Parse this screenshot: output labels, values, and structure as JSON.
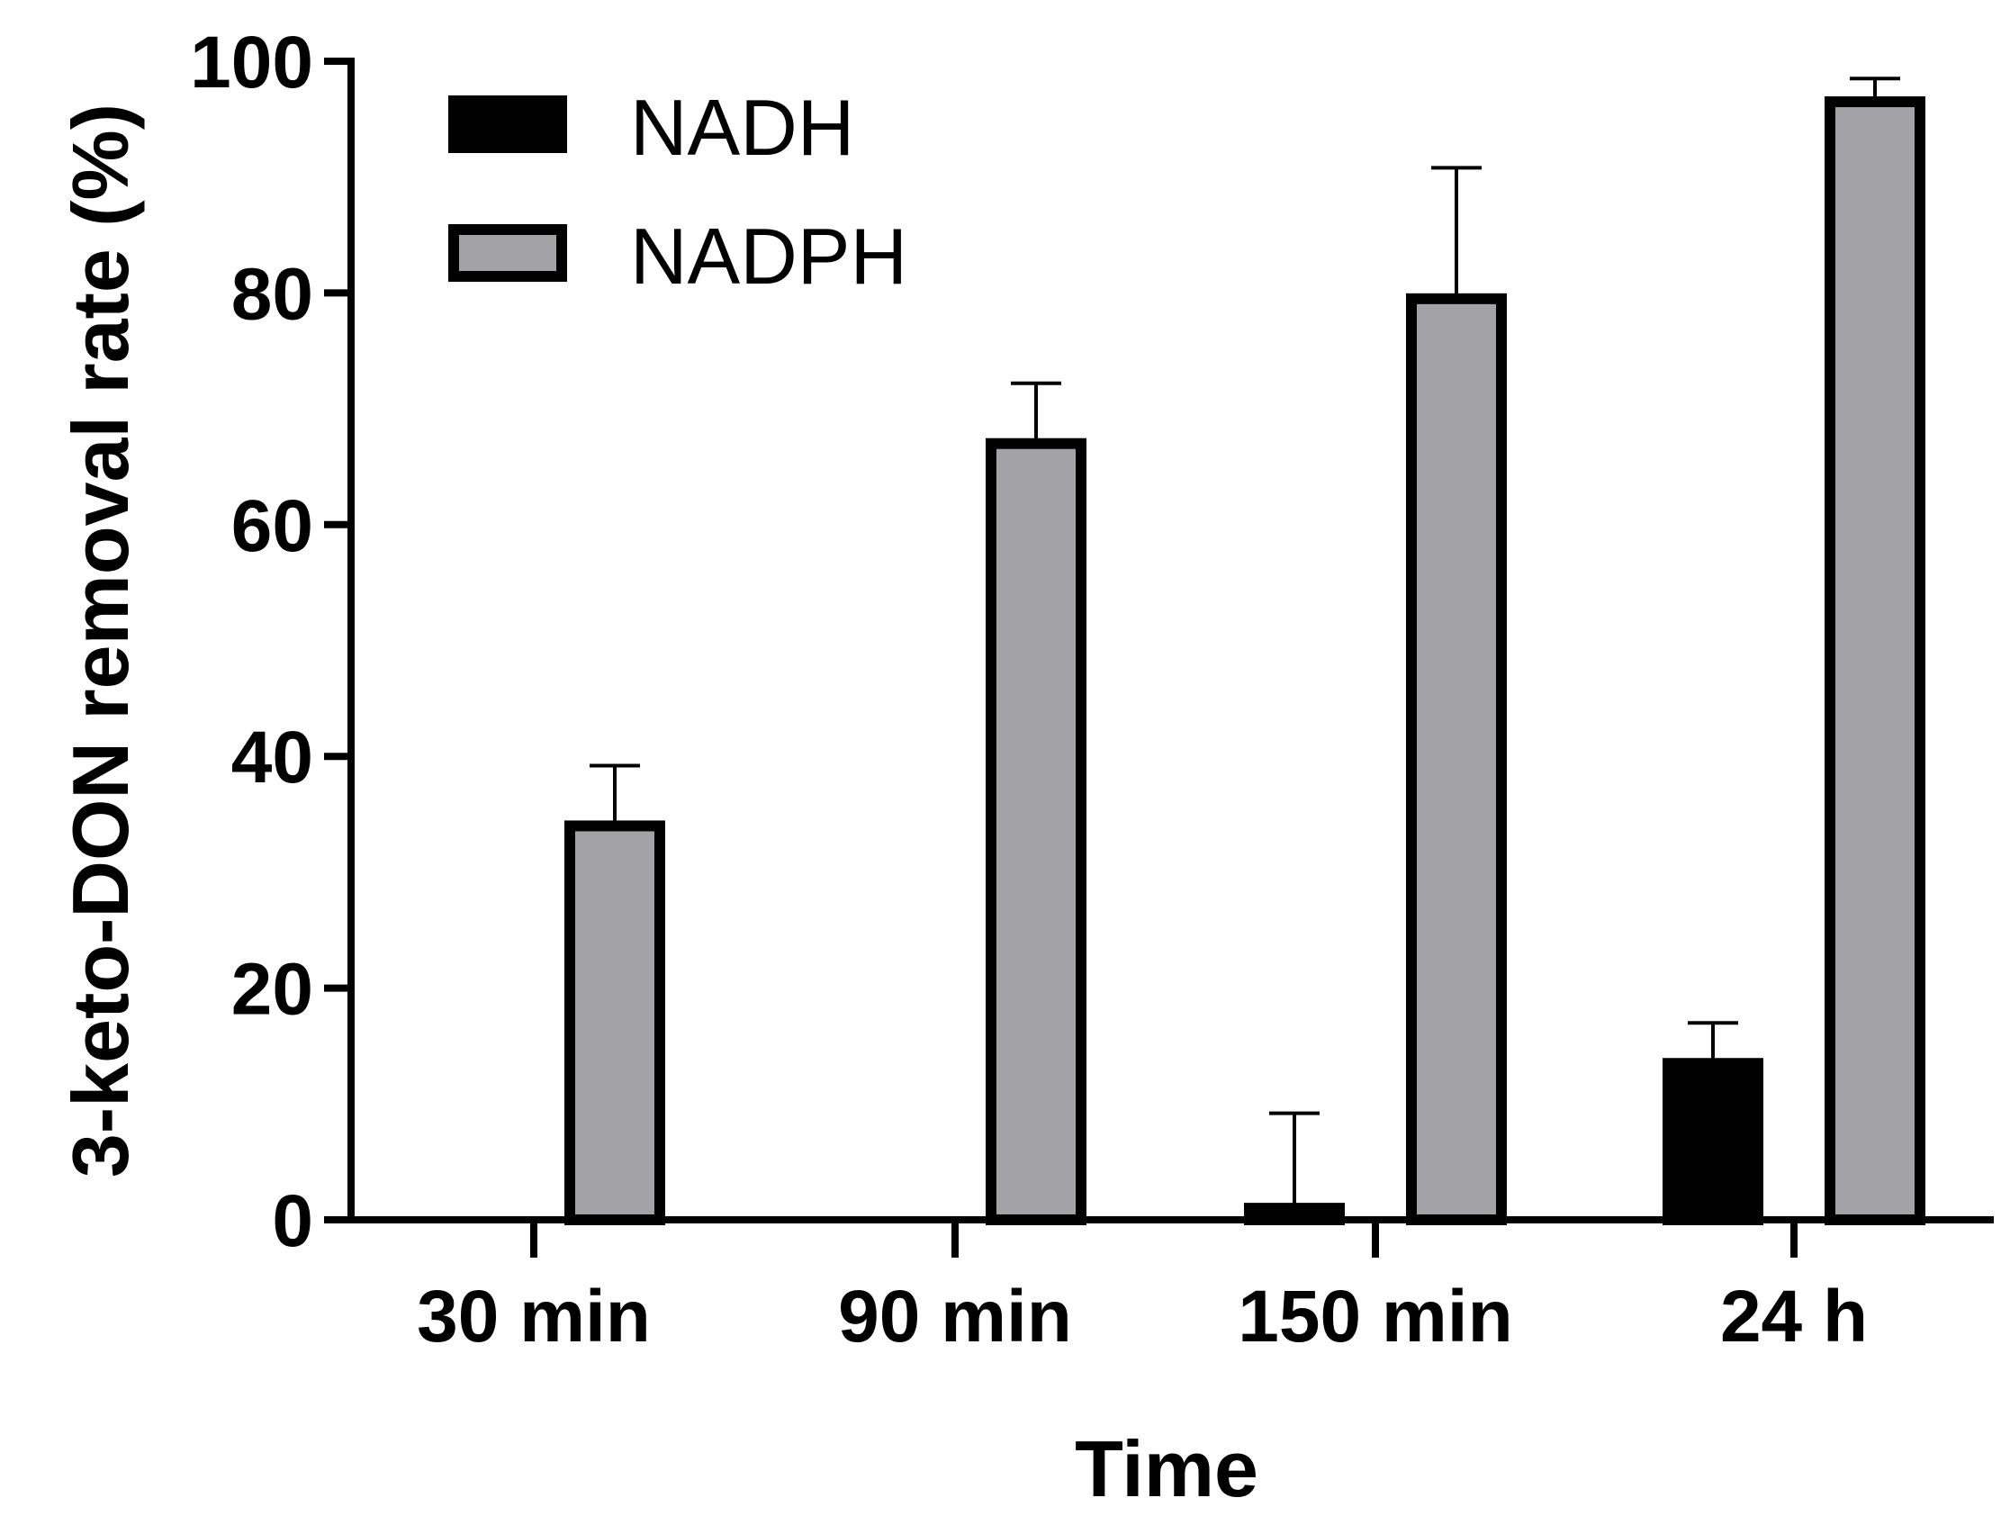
{
  "chart_data": {
    "type": "bar",
    "title": "",
    "xlabel": "Time",
    "ylabel": "3-keto-DON removal rate (%)",
    "ylim": [
      0,
      100
    ],
    "yticks": [
      0,
      20,
      40,
      60,
      80,
      100
    ],
    "categories": [
      "30 min",
      "90 min",
      "150 min",
      "24 h"
    ],
    "series": [
      {
        "name": "NADH",
        "color": "#000000",
        "values": [
          0,
          0,
          1.0,
          13.5
        ],
        "errors": [
          0,
          0,
          8.2,
          3.5
        ]
      },
      {
        "name": "NADPH",
        "color": "#a3a2a7",
        "values": [
          34,
          67,
          79.5,
          96.5
        ],
        "errors": [
          5.2,
          5.2,
          11.3,
          2.0
        ]
      }
    ],
    "legend": "top-left",
    "grid": false
  }
}
